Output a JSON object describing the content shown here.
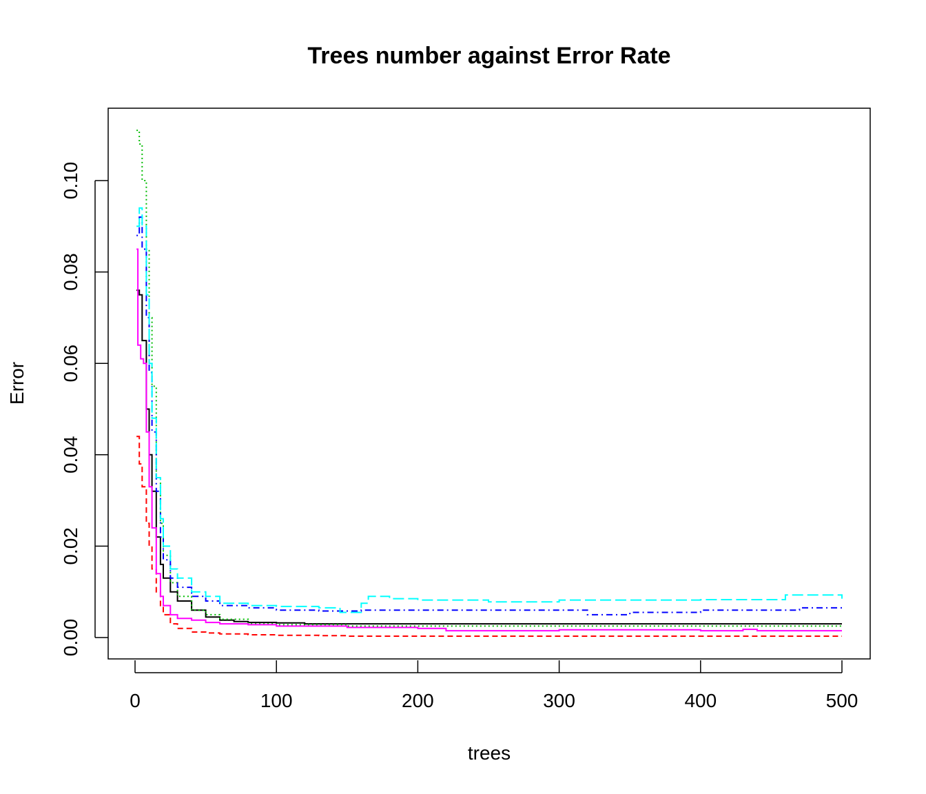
{
  "chart_data": {
    "type": "line",
    "title": "Trees number against Error Rate",
    "xlabel": "trees",
    "ylabel": "Error",
    "xlim": [
      0,
      500
    ],
    "ylim": [
      0,
      0.11
    ],
    "x_ticks": [
      0,
      100,
      200,
      300,
      400,
      500
    ],
    "x_tick_labels": [
      "0",
      "100",
      "200",
      "300",
      "400",
      "500"
    ],
    "y_ticks": [
      0,
      0.02,
      0.04,
      0.06,
      0.08,
      0.1
    ],
    "y_tick_labels": [
      "0.00",
      "0.02",
      "0.04",
      "0.06",
      "0.08",
      "0.10"
    ],
    "grid": false,
    "legend": "none",
    "series": [
      {
        "color": "#000000",
        "dash": "solid",
        "x": [
          1,
          3,
          5,
          8,
          10,
          12,
          15,
          18,
          20,
          25,
          30,
          40,
          50,
          60,
          70,
          80,
          100,
          120,
          150,
          200,
          250,
          300,
          350,
          400,
          450,
          500
        ],
        "y": [
          0.076,
          0.075,
          0.065,
          0.05,
          0.04,
          0.032,
          0.022,
          0.016,
          0.013,
          0.01,
          0.008,
          0.006,
          0.0045,
          0.0038,
          0.0035,
          0.0033,
          0.0032,
          0.003,
          0.003,
          0.003,
          0.003,
          0.003,
          0.003,
          0.003,
          0.003,
          0.003
        ]
      },
      {
        "color": "#ff0000",
        "dash": "dashed",
        "x": [
          1,
          3,
          5,
          8,
          10,
          12,
          15,
          18,
          20,
          25,
          30,
          40,
          50,
          60,
          80,
          100,
          130,
          150,
          200,
          300,
          400,
          500
        ],
        "y": [
          0.044,
          0.038,
          0.033,
          0.025,
          0.02,
          0.015,
          0.01,
          0.007,
          0.005,
          0.003,
          0.002,
          0.0012,
          0.001,
          0.0008,
          0.0006,
          0.0005,
          0.0004,
          0.0003,
          0.0003,
          0.0003,
          0.0003,
          0.0003
        ]
      },
      {
        "color": "#00bb00",
        "dash": "dotted",
        "x": [
          1,
          3,
          5,
          8,
          10,
          12,
          15,
          18,
          20,
          25,
          30,
          40,
          50,
          60,
          80,
          100,
          150,
          200,
          300,
          400,
          500
        ],
        "y": [
          0.111,
          0.108,
          0.1,
          0.085,
          0.07,
          0.055,
          0.035,
          0.025,
          0.018,
          0.012,
          0.009,
          0.006,
          0.005,
          0.004,
          0.003,
          0.0028,
          0.0025,
          0.0025,
          0.0025,
          0.0025,
          0.0026
        ]
      },
      {
        "color": "#0000ff",
        "dash": "dashdot",
        "x": [
          1,
          3,
          5,
          8,
          10,
          12,
          15,
          18,
          20,
          25,
          30,
          40,
          50,
          60,
          80,
          100,
          130,
          160,
          200,
          250,
          300,
          320,
          350,
          400,
          450,
          470,
          500
        ],
        "y": [
          0.088,
          0.092,
          0.085,
          0.07,
          0.058,
          0.045,
          0.032,
          0.022,
          0.017,
          0.013,
          0.011,
          0.009,
          0.008,
          0.007,
          0.0065,
          0.006,
          0.0058,
          0.006,
          0.006,
          0.006,
          0.006,
          0.005,
          0.0055,
          0.006,
          0.006,
          0.0065,
          0.006
        ]
      },
      {
        "color": "#00ffff",
        "dash": "longdash",
        "x": [
          1,
          3,
          5,
          8,
          10,
          12,
          15,
          18,
          20,
          25,
          30,
          40,
          50,
          60,
          80,
          100,
          130,
          145,
          160,
          165,
          180,
          200,
          250,
          300,
          400,
          460,
          500
        ],
        "y": [
          0.09,
          0.094,
          0.09,
          0.075,
          0.06,
          0.048,
          0.035,
          0.026,
          0.02,
          0.015,
          0.013,
          0.01,
          0.009,
          0.0075,
          0.007,
          0.0068,
          0.0065,
          0.0055,
          0.0075,
          0.009,
          0.0085,
          0.0082,
          0.0078,
          0.0082,
          0.0083,
          0.0093,
          0.0085
        ]
      },
      {
        "color": "#ff00ff",
        "dash": "solid",
        "x": [
          1,
          2,
          4,
          6,
          8,
          10,
          12,
          15,
          18,
          20,
          25,
          30,
          40,
          50,
          60,
          80,
          100,
          150,
          200,
          220,
          300,
          400,
          430,
          440,
          500
        ],
        "y": [
          0.085,
          0.064,
          0.061,
          0.06,
          0.045,
          0.033,
          0.024,
          0.014,
          0.009,
          0.007,
          0.005,
          0.0042,
          0.0038,
          0.0033,
          0.003,
          0.0028,
          0.0025,
          0.0022,
          0.002,
          0.0015,
          0.0017,
          0.0015,
          0.0018,
          0.0015,
          0.0015
        ]
      }
    ]
  }
}
